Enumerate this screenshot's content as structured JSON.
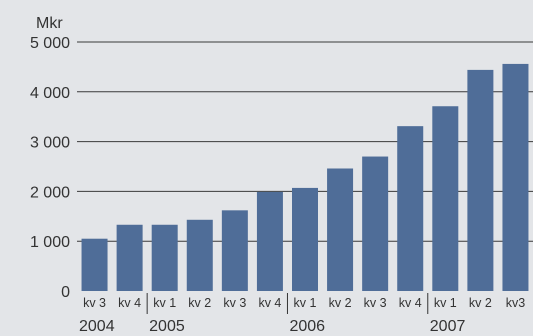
{
  "chart_data": {
    "type": "bar",
    "unit_label": "Mkr",
    "categories": [
      "kv 3",
      "kv 4",
      "kv 1",
      "kv 2",
      "kv 3",
      "kv 4",
      "kv 1",
      "kv 2",
      "kv 3",
      "kv 4",
      "kv 1",
      "kv 2",
      "kv3"
    ],
    "values": [
      1050,
      1330,
      1330,
      1430,
      1620,
      1990,
      2070,
      2460,
      2700,
      3310,
      3710,
      4440,
      4560
    ],
    "year_groups": [
      {
        "label": "2004",
        "start": 0,
        "count": 2
      },
      {
        "label": "2005",
        "start": 2,
        "count": 4
      },
      {
        "label": "2006",
        "start": 6,
        "count": 4
      },
      {
        "label": "2007",
        "start": 10,
        "count": 3
      }
    ],
    "y_ticks": [
      {
        "value": 0,
        "label": "0"
      },
      {
        "value": 1000,
        "label": "1 000"
      },
      {
        "value": 2000,
        "label": "2 000"
      },
      {
        "value": 3000,
        "label": "3 000"
      },
      {
        "value": 4000,
        "label": "4 000"
      },
      {
        "value": 5000,
        "label": "5 000"
      }
    ],
    "ylim": [
      0,
      5000
    ],
    "grid": true,
    "colors": {
      "bar": "#4f6d98",
      "background": "#e3e5e8",
      "text": "#333333"
    }
  }
}
